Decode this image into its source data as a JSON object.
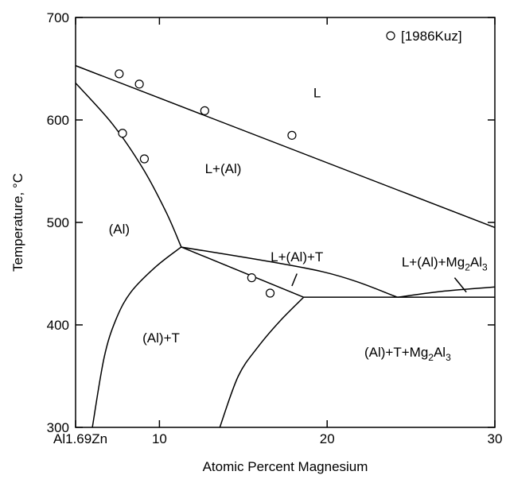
{
  "chart_data": {
    "type": "phase-diagram",
    "xlabel": "Atomic Percent  Magnesium",
    "ylabel": "Temperature, °C",
    "xlim": [
      5,
      30
    ],
    "ylim": [
      300,
      700
    ],
    "x_ticks": [
      {
        "value": 5,
        "label": "Al1.69Zn"
      },
      {
        "value": 10,
        "label": "10"
      },
      {
        "value": 20,
        "label": "20"
      },
      {
        "value": 30,
        "label": "30"
      }
    ],
    "y_ticks": [
      300,
      400,
      500,
      600,
      700
    ],
    "legend": {
      "label": "[1986Kuz]",
      "marker": "open-circle",
      "placement": "top-right"
    },
    "experimental_points": [
      {
        "x": 7.6,
        "y": 645
      },
      {
        "x": 7.8,
        "y": 587
      },
      {
        "x": 8.8,
        "y": 635
      },
      {
        "x": 9.1,
        "y": 562
      },
      {
        "x": 12.7,
        "y": 609
      },
      {
        "x": 15.5,
        "y": 446
      },
      {
        "x": 16.6,
        "y": 431
      },
      {
        "x": 17.9,
        "y": 585
      }
    ],
    "phase_boundaries": [
      {
        "name": "liquidus",
        "points": [
          [
            5,
            653
          ],
          [
            30,
            495
          ]
        ]
      },
      {
        "name": "solidus",
        "points": [
          [
            5,
            636
          ],
          [
            7.2,
            596
          ],
          [
            9.0,
            553
          ],
          [
            10.4,
            510
          ],
          [
            11.3,
            476
          ]
        ]
      },
      {
        "name": "al-solvus",
        "points": [
          [
            11.3,
            476
          ],
          [
            9.8,
            457
          ],
          [
            8.3,
            432
          ],
          [
            7.4,
            405
          ],
          [
            6.7,
            368
          ],
          [
            6.0,
            300
          ]
        ]
      },
      {
        "name": "eutectic-line-1",
        "points": [
          [
            11.3,
            476
          ],
          [
            18.6,
            427
          ]
        ]
      },
      {
        "name": "peritectic-boundary",
        "points": [
          [
            11.3,
            476
          ],
          [
            19.7,
            452
          ],
          [
            24.2,
            427
          ]
        ]
      },
      {
        "name": "three-phase-line",
        "points": [
          [
            18.6,
            427
          ],
          [
            30,
            427
          ]
        ]
      },
      {
        "name": "mg2al3-liquidus",
        "points": [
          [
            24.2,
            427
          ],
          [
            27,
            433
          ],
          [
            30,
            437
          ]
        ]
      },
      {
        "name": "t-solvus",
        "points": [
          [
            18.6,
            427
          ],
          [
            17.2,
            404
          ],
          [
            15.9,
            379
          ],
          [
            14.7,
            350
          ],
          [
            13.6,
            300
          ]
        ]
      },
      {
        "name": "leader-L+(Al)+T",
        "points": [
          [
            18.2,
            450
          ],
          [
            17.9,
            438
          ]
        ]
      },
      {
        "name": "leader-L+(Al)+Mg2Al3",
        "points": [
          [
            27.6,
            446
          ],
          [
            28.3,
            432
          ]
        ]
      }
    ],
    "region_labels": [
      {
        "text": "L",
        "x": 19.4,
        "y": 622
      },
      {
        "text": "L+(Al)",
        "x": 13.8,
        "y": 548
      },
      {
        "text": "(Al)",
        "x": 7.6,
        "y": 489
      },
      {
        "text": "L+(Al)+T",
        "x": 18.2,
        "y": 462
      },
      {
        "text": "(Al)+T",
        "x": 10.1,
        "y": 383
      },
      {
        "text": "L+(Al)+Mg",
        "sub": "2",
        "mid": "Al",
        "sub2": "3",
        "x": 27.0,
        "y": 457
      },
      {
        "text": "(Al)+T+Mg",
        "sub": "2",
        "mid": "Al",
        "sub2": "3",
        "x": 24.8,
        "y": 369
      }
    ]
  }
}
